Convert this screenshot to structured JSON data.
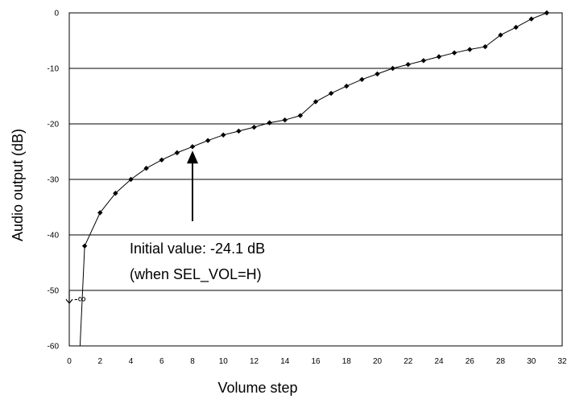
{
  "chart_data": {
    "type": "line",
    "xlabel": "Volume step",
    "ylabel": "Audio output (dB)",
    "xlim": [
      0,
      32
    ],
    "ylim": [
      -60,
      0
    ],
    "x_ticks": [
      "0",
      "2",
      "4",
      "6",
      "8",
      "10",
      "12",
      "14",
      "16",
      "18",
      "20",
      "22",
      "24",
      "26",
      "28",
      "30",
      "32"
    ],
    "y_ticks": [
      "0",
      "-10",
      "-20",
      "-30",
      "-40",
      "-50",
      "-60"
    ],
    "grid": "horizontal",
    "series": [
      {
        "marker": "diamond",
        "color": "#000000",
        "x": [
          1,
          2,
          3,
          4,
          5,
          6,
          7,
          8,
          9,
          10,
          11,
          12,
          13,
          14,
          15,
          16,
          17,
          18,
          19,
          20,
          21,
          22,
          23,
          24,
          25,
          26,
          27,
          28,
          29,
          30,
          31
        ],
        "y": [
          -42,
          -36,
          -32.5,
          -30,
          -28,
          -26.5,
          -25.2,
          -24.1,
          -23,
          -22,
          -21.3,
          -20.6,
          -19.8,
          -19.3,
          -18.5,
          -16,
          -14.5,
          -13.2,
          -12,
          -11,
          -10,
          -9.3,
          -8.6,
          -7.9,
          -7.2,
          -6.6,
          -6.1,
          -4,
          -2.6,
          -1.1,
          0
        ]
      }
    ],
    "annotations": {
      "initial_line1": "Initial value: -24.1 dB",
      "initial_line2": "(when SEL_VOL=H)",
      "initial_x": 8,
      "initial_y": -24.1,
      "neg_inf_label": "-∞"
    }
  }
}
